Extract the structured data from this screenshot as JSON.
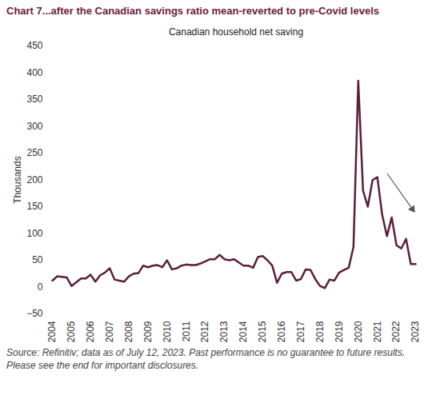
{
  "chart_data": {
    "type": "line",
    "title": "Chart 7...after the Canadian savings ratio mean-reverted to pre-Covid levels",
    "subtitle": "Canadian household net saving",
    "y_label": "Thousands",
    "caption": "Source: Refinitiv; data as of July 12, 2023. Past performance is no guarantee to future results. Please see the end for important disclosures.",
    "categories": [
      "2004",
      null,
      null,
      null,
      "2005",
      null,
      null,
      null,
      "2006",
      null,
      null,
      null,
      "2007",
      null,
      null,
      null,
      "2008",
      null,
      null,
      null,
      "2009",
      null,
      null,
      null,
      "2010",
      null,
      null,
      null,
      "2011",
      null,
      null,
      null,
      "2012",
      null,
      null,
      null,
      "2013",
      null,
      null,
      null,
      "2014",
      null,
      null,
      null,
      "2015",
      null,
      null,
      null,
      "2016",
      null,
      null,
      null,
      "2017",
      null,
      null,
      null,
      "2018",
      null,
      null,
      null,
      "2019",
      null,
      null,
      null,
      "2020",
      null,
      null,
      null,
      "2021",
      null,
      null,
      null,
      "2022",
      null,
      null,
      null,
      "2023"
    ],
    "values": [
      12,
      20,
      19,
      18,
      2,
      9,
      16,
      16,
      23,
      10,
      22,
      27,
      35,
      14,
      12,
      10,
      20,
      25,
      26,
      40,
      37,
      40,
      41,
      37,
      50,
      33,
      35,
      40,
      42,
      41,
      41,
      44,
      48,
      52,
      52,
      60,
      52,
      50,
      52,
      46,
      40,
      40,
      36,
      56,
      58,
      50,
      40,
      8,
      25,
      28,
      28,
      12,
      15,
      33,
      32,
      15,
      2,
      -2,
      14,
      12,
      27,
      32,
      36,
      75,
      385,
      180,
      150,
      200,
      205,
      135,
      95,
      130,
      78,
      72,
      90,
      43,
      43
    ],
    "color": "#5b1f38",
    "ylim": [
      -50,
      450
    ],
    "yticks": [
      -50,
      0,
      50,
      100,
      150,
      200,
      250,
      300,
      350,
      400,
      450
    ],
    "grid": false
  }
}
